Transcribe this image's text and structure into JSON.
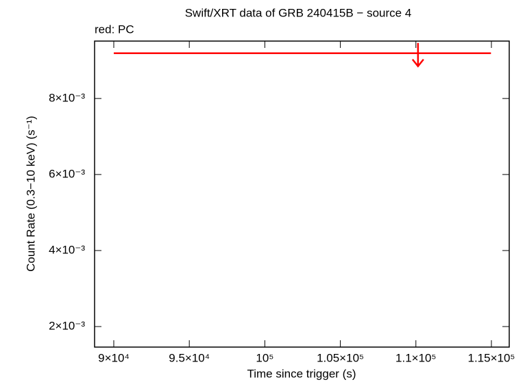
{
  "chart_data": {
    "type": "upper-limit",
    "title": "Swift/XRT data of GRB 240415B − source 4",
    "x_label": "Time since trigger (s)",
    "y_label": "Count Rate (0.3−10 keV) (s⁻¹)",
    "series": [
      {
        "name": "red: PC",
        "color": "#ff0000",
        "x": [
          110140
        ],
        "xerr_minus": [
          20140
        ],
        "xerr_plus": [
          4830
        ],
        "values": [
          0.00919
        ]
      }
    ],
    "xlim": [
      88730,
      116180
    ],
    "xticks": [
      {
        "value": 90000,
        "label": "9×10⁴"
      },
      {
        "value": 95000,
        "label": "9.5×10⁴"
      },
      {
        "value": 100000,
        "label": "10⁵"
      },
      {
        "value": 105000,
        "label": "1.05×10⁵"
      },
      {
        "value": 110000,
        "label": "1.1×10⁵"
      },
      {
        "value": 115000,
        "label": "1.15×10⁵"
      }
    ],
    "ylim": [
      0.00146,
      0.00951
    ],
    "yticks": [
      {
        "value": 0.002,
        "label": "2×10⁻³"
      },
      {
        "value": 0.004,
        "label": "4×10⁻³"
      },
      {
        "value": 0.006,
        "label": "6×10⁻³"
      },
      {
        "value": 0.008,
        "label": "8×10⁻³"
      }
    ]
  }
}
